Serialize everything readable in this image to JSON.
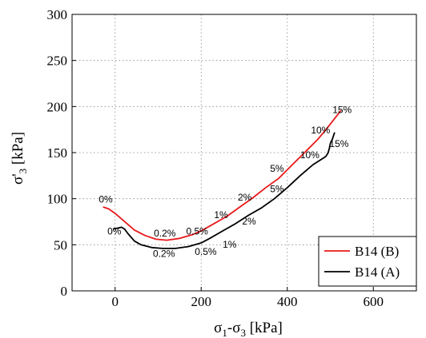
{
  "chart_data": {
    "type": "line",
    "xlabel_main": "σ",
    "xlabel_sub1": "1",
    "xlabel_mid": "-σ",
    "xlabel_sub2": "3",
    "xlabel_unit": " [kPa]",
    "ylabel_main": "σ'",
    "ylabel_sub": "3",
    "ylabel_unit": " [kPa]",
    "xlim": [
      -100,
      700
    ],
    "ylim": [
      0,
      300
    ],
    "xticks": [
      0,
      200,
      400,
      600
    ],
    "yticks": [
      0,
      50,
      100,
      150,
      200,
      250,
      300
    ],
    "grid": true,
    "legend_position": "bottom-right",
    "series": [
      {
        "name": "B14 (B)",
        "color": "#e8191c",
        "points": [
          [
            -28,
            91
          ],
          [
            -15,
            89
          ],
          [
            0,
            84
          ],
          [
            20,
            76
          ],
          [
            45,
            66
          ],
          [
            70,
            60
          ],
          [
            95,
            56
          ],
          [
            120,
            55
          ],
          [
            150,
            57
          ],
          [
            180,
            61
          ],
          [
            200,
            65
          ],
          [
            230,
            73
          ],
          [
            260,
            81
          ],
          [
            290,
            91
          ],
          [
            320,
            101
          ],
          [
            350,
            112
          ],
          [
            380,
            122
          ],
          [
            410,
            136
          ],
          [
            440,
            150
          ],
          [
            470,
            164
          ],
          [
            490,
            175
          ],
          [
            505,
            184
          ],
          [
            520,
            193
          ],
          [
            525,
            196
          ]
        ]
      },
      {
        "name": "B14 (A)",
        "color": "#000000",
        "points": [
          [
            -5,
            67
          ],
          [
            5,
            68
          ],
          [
            15,
            69
          ],
          [
            22,
            67
          ],
          [
            30,
            62
          ],
          [
            45,
            54
          ],
          [
            60,
            50
          ],
          [
            85,
            47
          ],
          [
            110,
            46
          ],
          [
            140,
            46
          ],
          [
            170,
            48
          ],
          [
            200,
            52
          ],
          [
            220,
            57
          ],
          [
            250,
            65
          ],
          [
            280,
            73
          ],
          [
            310,
            82
          ],
          [
            340,
            90
          ],
          [
            370,
            100
          ],
          [
            400,
            112
          ],
          [
            430,
            125
          ],
          [
            460,
            137
          ],
          [
            480,
            143
          ],
          [
            490,
            146
          ],
          [
            495,
            150
          ],
          [
            498,
            155
          ],
          [
            500,
            160
          ],
          [
            505,
            165
          ],
          [
            510,
            172
          ]
        ]
      }
    ],
    "annotations": [
      {
        "text": "0%",
        "x": -38,
        "y": 96
      },
      {
        "text": "0%",
        "x": -18,
        "y": 61
      },
      {
        "text": "0.2%",
        "x": 90,
        "y": 59
      },
      {
        "text": "0.2%",
        "x": 88,
        "y": 37
      },
      {
        "text": "0.5%",
        "x": 165,
        "y": 61
      },
      {
        "text": "0.5%",
        "x": 185,
        "y": 39
      },
      {
        "text": "1%",
        "x": 230,
        "y": 79
      },
      {
        "text": "1%",
        "x": 250,
        "y": 47
      },
      {
        "text": "2%",
        "x": 285,
        "y": 98
      },
      {
        "text": "2%",
        "x": 295,
        "y": 72
      },
      {
        "text": "5%",
        "x": 360,
        "y": 129
      },
      {
        "text": "5%",
        "x": 360,
        "y": 107
      },
      {
        "text": "10%",
        "x": 455,
        "y": 171
      },
      {
        "text": "10%",
        "x": 430,
        "y": 144
      },
      {
        "text": "15%",
        "x": 505,
        "y": 193
      },
      {
        "text": "15%",
        "x": 498,
        "y": 156
      }
    ]
  }
}
